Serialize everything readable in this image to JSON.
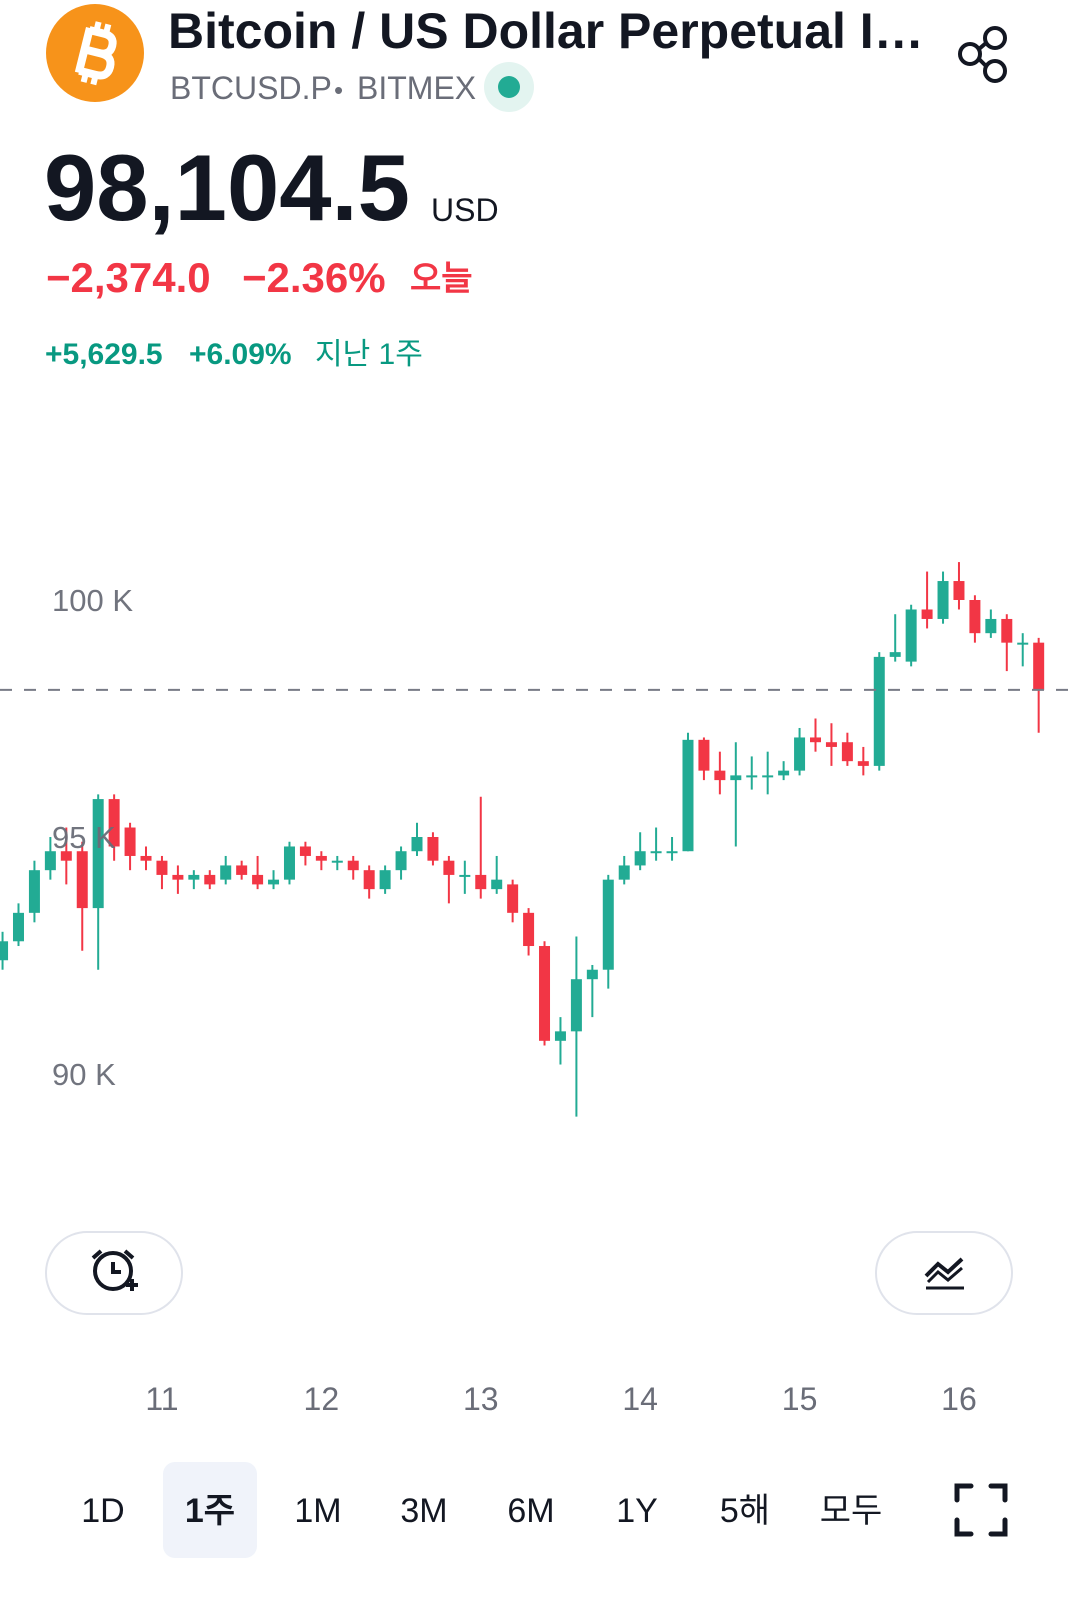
{
  "header": {
    "title": "Bitcoin / US Dollar Perpetual I…",
    "symbol": "BTCUSD.P",
    "separator": "•",
    "exchange": "BITMEX"
  },
  "quote": {
    "price": "98,104.5",
    "currency": "USD",
    "change": "−2,374.0",
    "change_pct": "−2.36%",
    "period": "오늘",
    "week_change": "+5,629.5",
    "week_change_pct": "+6.09%",
    "week_period": "지난 1주"
  },
  "tabs": {
    "items": [
      "1D",
      "1주",
      "1M",
      "3M",
      "6M",
      "1Y",
      "5해",
      "모두"
    ],
    "selected": "1주"
  },
  "chart_data": {
    "type": "candlestick",
    "up_color": "#22ab94",
    "down_color": "#f23645",
    "x": [
      10.0,
      10.1,
      10.2,
      10.3,
      10.4,
      10.5,
      10.6,
      10.7,
      10.8,
      10.9,
      11.0,
      11.1,
      11.2,
      11.3,
      11.4,
      11.5,
      11.6,
      11.7,
      11.8,
      11.9,
      12.0,
      12.1,
      12.2,
      12.3,
      12.4,
      12.5,
      12.6,
      12.7,
      12.8,
      12.9,
      13.0,
      13.1,
      13.2,
      13.3,
      13.4,
      13.5,
      13.6,
      13.7,
      13.8,
      13.9,
      14.0,
      14.1,
      14.2,
      14.3,
      14.4,
      14.5,
      14.6,
      14.7,
      14.8,
      14.9,
      15.0,
      15.1,
      15.2,
      15.3,
      15.4,
      15.5,
      15.6,
      15.7,
      15.8,
      15.9,
      16.0,
      16.1,
      16.2,
      16.3,
      16.4,
      16.5
    ],
    "open": [
      92.4,
      92.8,
      93.4,
      94.3,
      94.7,
      94.7,
      93.5,
      95.8,
      95.2,
      94.6,
      94.5,
      94.2,
      94.1,
      94.2,
      94.1,
      94.4,
      94.2,
      94.0,
      94.1,
      94.8,
      94.6,
      94.5,
      94.5,
      94.3,
      93.9,
      94.3,
      94.7,
      95.0,
      94.5,
      94.2,
      94.2,
      93.9,
      94.0,
      93.4,
      92.7,
      90.7,
      90.9,
      92.0,
      92.2,
      94.1,
      94.4,
      94.7,
      94.7,
      94.7,
      97.05,
      96.4,
      96.2,
      96.3,
      96.3,
      96.3,
      96.4,
      97.1,
      97.0,
      97.0,
      96.6,
      96.5,
      98.8,
      98.7,
      99.8,
      99.6,
      100.4,
      100.0,
      99.3,
      99.6,
      99.1,
      99.1
    ],
    "high": [
      93.0,
      93.6,
      94.5,
      95.0,
      95.2,
      94.9,
      95.9,
      95.9,
      95.3,
      94.8,
      94.6,
      94.4,
      94.3,
      94.3,
      94.6,
      94.5,
      94.6,
      94.3,
      94.9,
      94.9,
      94.7,
      94.6,
      94.6,
      94.4,
      94.4,
      94.8,
      95.3,
      95.1,
      94.6,
      94.5,
      95.85,
      94.6,
      94.1,
      93.5,
      92.8,
      91.2,
      92.9,
      92.3,
      94.2,
      94.6,
      95.1,
      95.2,
      95.0,
      97.2,
      97.1,
      96.8,
      97.0,
      96.7,
      96.8,
      96.6,
      97.3,
      97.5,
      97.4,
      97.2,
      96.9,
      98.9,
      99.7,
      99.9,
      100.6,
      100.6,
      100.8,
      100.1,
      99.8,
      99.7,
      99.3,
      99.2
    ],
    "low": [
      92.2,
      92.7,
      93.2,
      94.1,
      94.0,
      92.6,
      92.2,
      94.5,
      94.3,
      94.3,
      93.9,
      93.8,
      93.9,
      93.9,
      94.0,
      94.1,
      93.9,
      93.9,
      94.0,
      94.4,
      94.3,
      94.3,
      94.1,
      93.7,
      93.8,
      94.1,
      94.6,
      94.4,
      93.6,
      93.8,
      93.7,
      93.8,
      93.2,
      92.5,
      90.6,
      90.2,
      89.1,
      91.2,
      91.8,
      94.0,
      94.3,
      94.5,
      94.5,
      94.7,
      96.2,
      95.9,
      94.8,
      96.0,
      95.9,
      96.2,
      96.3,
      96.8,
      96.5,
      96.5,
      96.3,
      96.4,
      98.7,
      98.6,
      99.4,
      99.5,
      99.8,
      99.1,
      99.2,
      98.5,
      98.6,
      97.2
    ],
    "close": [
      92.8,
      93.4,
      94.3,
      94.7,
      94.5,
      93.5,
      95.8,
      94.8,
      94.6,
      94.5,
      94.2,
      94.1,
      94.2,
      94.0,
      94.4,
      94.2,
      94.0,
      94.1,
      94.8,
      94.6,
      94.5,
      94.5,
      94.3,
      93.9,
      94.3,
      94.7,
      95.0,
      94.5,
      94.2,
      94.2,
      93.9,
      94.1,
      93.4,
      92.7,
      90.7,
      90.9,
      92.0,
      92.2,
      94.1,
      94.4,
      94.7,
      94.7,
      94.7,
      97.05,
      96.4,
      96.2,
      96.3,
      96.3,
      96.3,
      96.4,
      97.1,
      97.0,
      96.9,
      96.6,
      96.5,
      98.8,
      98.9,
      99.8,
      99.6,
      100.4,
      100.0,
      99.3,
      99.6,
      99.1,
      99.1,
      98.1
    ],
    "last_price_line": 98.1045,
    "xlim": [
      9.984,
      16.753
    ],
    "xticks": [
      11,
      12,
      13,
      14,
      15,
      16
    ],
    "ylim": [
      87,
      104
    ],
    "yticks": [
      {
        "value": 90,
        "label": "90 K"
      },
      {
        "value": 95,
        "label": "95 K"
      },
      {
        "value": 100,
        "label": "100 K"
      }
    ]
  }
}
